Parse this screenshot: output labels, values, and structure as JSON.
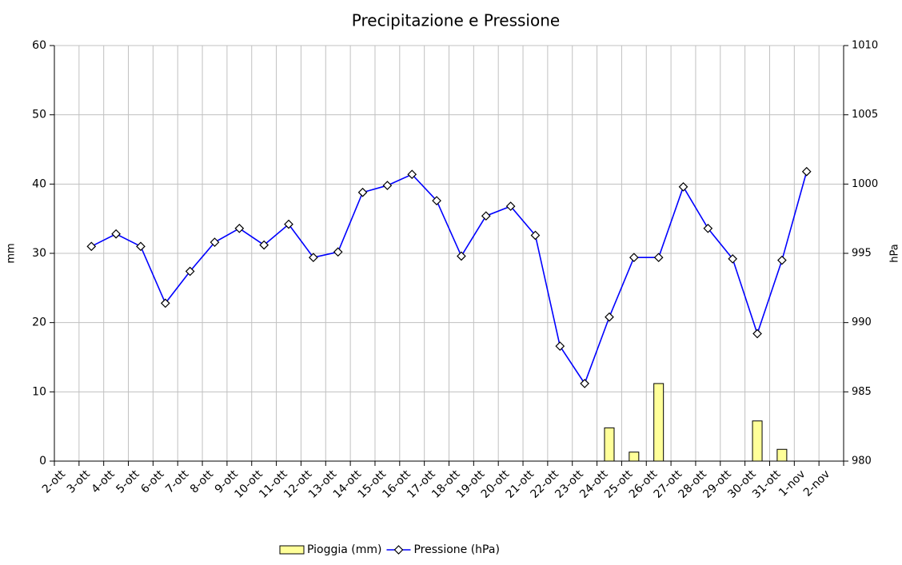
{
  "chart_data": {
    "type": "combo",
    "title": "Precipitazione e Pressione",
    "ylabel": "mm",
    "y2label": "hPa",
    "categories": [
      "2-ott",
      "3-ott",
      "4-ott",
      "5-ott",
      "6-ott",
      "7-ott",
      "8-ott",
      "9-ott",
      "10-ott",
      "11-ott",
      "12-ott",
      "13-ott",
      "14-ott",
      "15-ott",
      "16-ott",
      "17-ott",
      "18-ott",
      "19-ott",
      "20-ott",
      "21-ott",
      "22-ott",
      "23-ott",
      "24-ott",
      "25-ott",
      "26-ott",
      "27-ott",
      "28-ott",
      "29-ott",
      "30-ott",
      "31-ott",
      "1-nov",
      "2-nov"
    ],
    "series": [
      {
        "name": "Pioggia (mm)",
        "type": "bar",
        "color": "#ffff99",
        "values": [
          0,
          0,
          0,
          0,
          0,
          0,
          0,
          0,
          0,
          0,
          0,
          0,
          0,
          0,
          0,
          0,
          0,
          0,
          0,
          0,
          0,
          0,
          4.8,
          1.3,
          11.2,
          0,
          0,
          0,
          5.8,
          1.7,
          0,
          0
        ]
      },
      {
        "name": "Pressione (hPa)",
        "type": "line",
        "axis": "y2",
        "color": "#0000ff",
        "values": [
          null,
          995.5,
          996.4,
          995.5,
          991.4,
          993.7,
          995.8,
          996.8,
          995.6,
          997.1,
          994.7,
          995.1,
          999.4,
          999.9,
          1000.7,
          998.8,
          994.8,
          997.7,
          998.4,
          996.3,
          988.3,
          985.6,
          990.4,
          994.7,
          994.7,
          999.8,
          996.8,
          994.6,
          989.2,
          994.5,
          1000.9,
          null
        ]
      }
    ],
    "ylim": [
      0,
      60
    ],
    "yticks": [
      0,
      10,
      20,
      30,
      40,
      50,
      60
    ],
    "y2lim": [
      980,
      1010
    ],
    "y2ticks": [
      980,
      985,
      990,
      995,
      1000,
      1005,
      1010
    ],
    "grid": true,
    "legend": "bottom"
  }
}
